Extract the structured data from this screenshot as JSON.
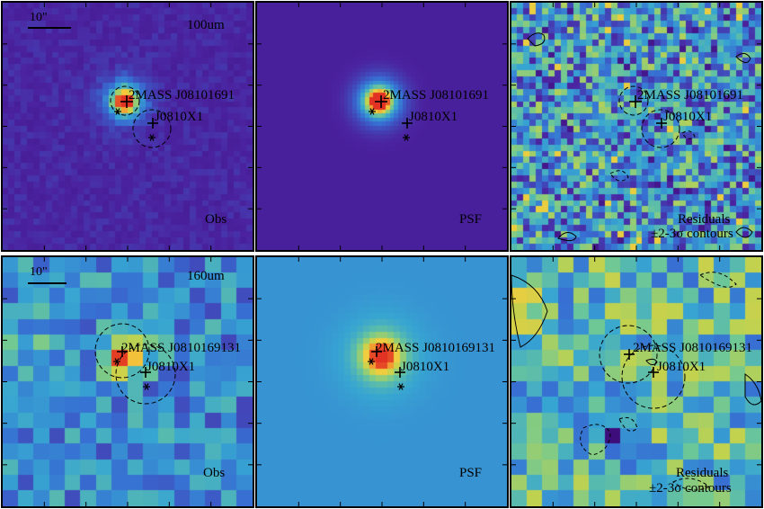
{
  "figure": {
    "rows": [
      {
        "band": "100um",
        "scale_label": "10\"",
        "panels": [
          {
            "kind": "obs",
            "label": "Obs",
            "sources": [
              "2MASS J08101691",
              "J0810X1"
            ]
          },
          {
            "kind": "psf",
            "label": "PSF",
            "sources": [
              "2MASS J08101691",
              "J0810X1"
            ]
          },
          {
            "kind": "res",
            "label": "Residuals",
            "label2": "±2-3σ contours",
            "sources": [
              "2MASS J08101691",
              "J0810X1"
            ]
          }
        ]
      },
      {
        "band": "160um",
        "scale_label": "10\"",
        "panels": [
          {
            "kind": "obs",
            "label": "Obs",
            "sources": [
              "2MASS J0810169131",
              "J0810X1"
            ]
          },
          {
            "kind": "psf",
            "label": "PSF",
            "sources": [
              "2MASS J0810169131",
              "J0810X1"
            ]
          },
          {
            "kind": "res",
            "label": "Residuals",
            "label2": "±2-3σ contours",
            "sources": [
              "2MASS J0810169131",
              "J0810X1"
            ]
          }
        ]
      }
    ],
    "colors": {
      "low": "#44148a",
      "mid": "#3a9fd5",
      "mid2": "#6cc7a0",
      "high": "#f2d24b",
      "peak": "#e8442a",
      "background_psf_top": "#4d2db3",
      "background_psf_bottom": "#5aa4d8"
    }
  }
}
